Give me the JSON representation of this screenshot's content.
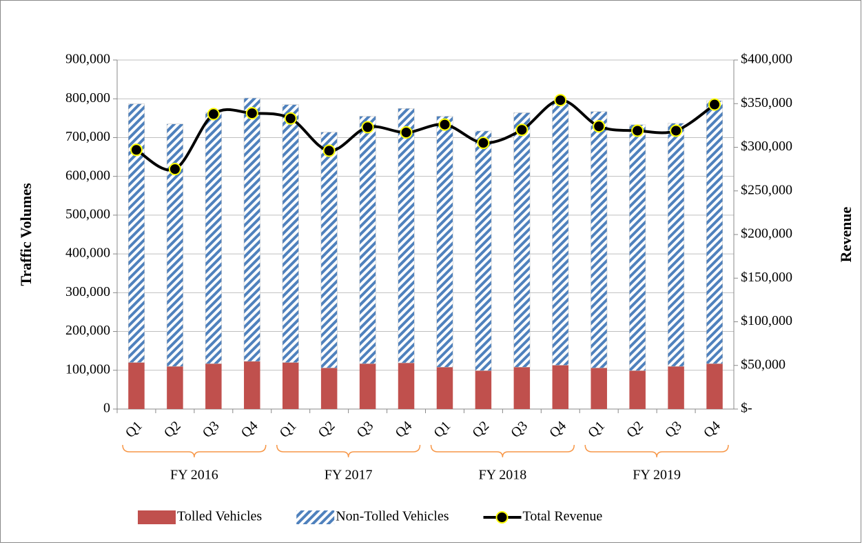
{
  "chart_data": {
    "type": "bar",
    "stacked": true,
    "categories": [
      "Q1",
      "Q2",
      "Q3",
      "Q4",
      "Q1",
      "Q2",
      "Q3",
      "Q4",
      "Q1",
      "Q2",
      "Q3",
      "Q4",
      "Q1",
      "Q2",
      "Q3",
      "Q4"
    ],
    "category_groups": [
      "FY 2016",
      "FY 2017",
      "FY 2018",
      "FY 2019"
    ],
    "y_label": "Traffic Volumes",
    "y2_label": "Revenue",
    "ylim": [
      0,
      900000
    ],
    "yticks": [
      0,
      {
        "value": 100000,
        "label": "100,000"
      },
      {
        "value": 200000,
        "label": "200,000"
      },
      {
        "value": 300000,
        "label": "300,000"
      },
      {
        "value": 400000,
        "label": "400,000"
      },
      {
        "value": 500000,
        "label": "500,000"
      },
      {
        "value": 600000,
        "label": "600,000"
      },
      {
        "value": 700000,
        "label": "700,000"
      },
      {
        "value": 800000,
        "label": "800,000"
      },
      {
        "value": 900000,
        "label": "900,000"
      }
    ],
    "y2lim": [
      0,
      400000
    ],
    "y2ticks": [
      {
        "value": 0,
        "label": "$-"
      },
      {
        "value": 50000,
        "label": "$50,000"
      },
      {
        "value": 100000,
        "label": "$100,000"
      },
      {
        "value": 150000,
        "label": "$150,000"
      },
      {
        "value": 200000,
        "label": "$200,000"
      },
      {
        "value": 250000,
        "label": "$250,000"
      },
      {
        "value": 300000,
        "label": "$300,000"
      },
      {
        "value": 350000,
        "label": "$350,000"
      },
      {
        "value": 400000,
        "label": "$400,000"
      }
    ],
    "grid": true,
    "legend": "bottom",
    "series": [
      {
        "name": "Tolled Vehicles",
        "type": "bar",
        "color": "#c0504d",
        "values": [
          120000,
          110000,
          117000,
          123000,
          120000,
          106000,
          117000,
          119000,
          108000,
          99000,
          108000,
          113000,
          106000,
          99000,
          110000,
          117000
        ]
      },
      {
        "name": "Non-Tolled Vehicles",
        "type": "bar",
        "color": "#4f81bd",
        "hatch": true,
        "values": [
          667000,
          625000,
          648000,
          679000,
          665000,
          608000,
          638000,
          656000,
          647000,
          618000,
          656000,
          682000,
          661000,
          634000,
          627000,
          678000
        ]
      },
      {
        "name": "Total Revenue",
        "type": "line",
        "axis": "y2",
        "color": "#000000",
        "marker_edge": "#ffff00",
        "values": [
          297000,
          275000,
          338000,
          339000,
          333000,
          296000,
          323000,
          317000,
          326000,
          305000,
          320000,
          354000,
          324000,
          319000,
          319000,
          349000
        ]
      }
    ]
  }
}
